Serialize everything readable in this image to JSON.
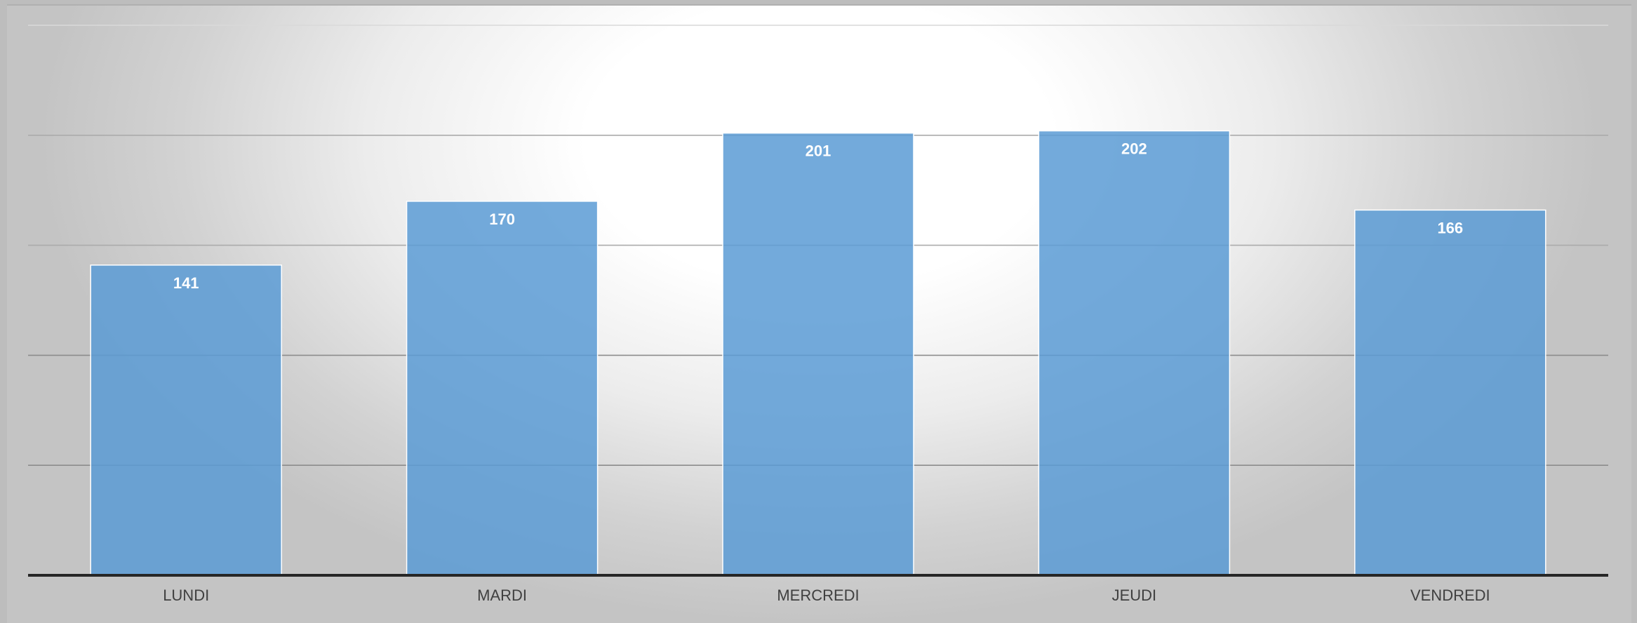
{
  "chart_data": {
    "type": "bar",
    "categories": [
      "LUNDI",
      "MARDI",
      "MERCREDI",
      "JEUDI",
      "VENDREDI"
    ],
    "values": [
      141,
      170,
      201,
      202,
      166
    ],
    "title": "",
    "xlabel": "",
    "ylabel": "",
    "ylim": [
      0,
      250
    ],
    "grid": true,
    "data_labels": true,
    "legend": "none",
    "colors": {
      "bar": "#5b9bd5",
      "data_label": "#ffffff",
      "category_label": "#404040",
      "axis": "#262626",
      "gridline_dark": "#8c8c8c",
      "gridline_light": "#d9d9d9"
    }
  }
}
